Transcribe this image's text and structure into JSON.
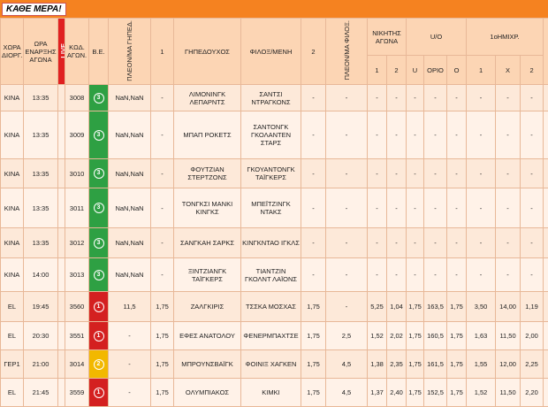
{
  "header": {
    "banner": "ΚΑΘΕ ΜΕΡΑ!"
  },
  "table": {
    "columns": [
      {
        "label": "ΧΩΡΑ ΔΙΟΡΓ."
      },
      {
        "label": "ΩΡΑ ΕΝΑΡΞΗΣ ΑΓΩΝΑ"
      },
      {
        "label": "LIVE"
      },
      {
        "label": "ΚΩΔ. ΑΓΩΝ."
      },
      {
        "label": "Β.Ε."
      },
      {
        "label": "ΠΛΕΟΝ/ΜΑ ΓΗΠΕΔ."
      },
      {
        "label": "1"
      },
      {
        "label": "ΓΗΠΕΔΟΥΧΟΣ"
      },
      {
        "label": "ΦΙΛΟΞ/ΜΕΝΗ"
      },
      {
        "label": "2"
      },
      {
        "label": "ΠΛΕΟΝ/ΜΑ ΦΙΛΟΞ."
      },
      {
        "label": "ΝΙΚΗΤΗΣ ΑΓΩΝΑ",
        "sub": [
          "1",
          "2"
        ]
      },
      {
        "label": "U/O",
        "sub": [
          "U",
          "ΟΡΙΟ",
          "Ο"
        ]
      },
      {
        "label": "1οΗΜΙΧΡ.",
        "sub": [
          "1",
          "Χ",
          "2"
        ]
      }
    ],
    "rows": [
      [
        "ΚΙΝΑ",
        "13:35",
        "3008",
        "3",
        "NaN,NaN",
        "-",
        "ΛΙΜΟΝΙΝΓΚ ΛΕΠΑΡΝΤΣ",
        "ΣΑΝΤΣΙ ΝΤΡΑΓΚΟΝΣ",
        "-",
        "-",
        "-",
        "-",
        "-",
        "-",
        "-",
        "-",
        "-",
        "-"
      ],
      [
        "ΚΙΝΑ",
        "13:35",
        "3009",
        "3",
        "NaN,NaN",
        "-",
        "ΜΠΑΠ ΡΟΚΕΤΣ",
        "ΣΑΝΤΟΝΓΚ ΓΚΟΛΑΝΤΕΝ ΣΤΑΡΣ",
        "-",
        "-",
        "-",
        "-",
        "-",
        "-",
        "-",
        "-",
        "-",
        "-"
      ],
      [
        "ΚΙΝΑ",
        "13:35",
        "3010",
        "3",
        "NaN,NaN",
        "-",
        "ΦΟΥΤΖΙΑΝ ΣΤΕΡΤΖΟΝΣ",
        "ΓΚΟΥΑΝΤΟΝΓΚ ΤΑΪΓΚΕΡΣ",
        "-",
        "-",
        "-",
        "-",
        "-",
        "-",
        "-",
        "-",
        "-",
        "-"
      ],
      [
        "ΚΙΝΑ",
        "13:35",
        "3011",
        "3",
        "NaN,NaN",
        "-",
        "ΤΟΝΓΚΣΙ ΜΑΝΚΙ ΚΙΝΓΚΣ",
        "ΜΠΕΪΤΖΙΝΓΚ ΝΤΑΚΣ",
        "-",
        "-",
        "-",
        "-",
        "-",
        "-",
        "-",
        "-",
        "-",
        "-"
      ],
      [
        "ΚΙΝΑ",
        "13:35",
        "3012",
        "3",
        "NaN,NaN",
        "-",
        "ΣΑΝΓΚΑΗ ΣΑΡΚΣ",
        "ΚΙΝΓΚΝΤΑΟ ΙΓΚΛΣ",
        "-",
        "-",
        "-",
        "-",
        "-",
        "-",
        "-",
        "-",
        "-",
        "-"
      ],
      [
        "ΚΙΝΑ",
        "14:00",
        "3013",
        "3",
        "NaN,NaN",
        "-",
        "ΞΙΝΤΖΙΑΝΓΚ ΤΑΪΓΚΕΡΣ",
        "ΤΙΑΝΤΖΙΝ ΓΚΟΛΝΤ ΛΑΪΟΝΣ",
        "-",
        "-",
        "-",
        "-",
        "-",
        "-",
        "-",
        "-",
        "-",
        "-"
      ],
      [
        "EL",
        "19:45",
        "3560",
        "1",
        "11,5",
        "1,75",
        "ΖΑΛΓΚΙΡΙΣ",
        "ΤΣΣΚΑ ΜΟΣΧΑΣ",
        "1,75",
        "-",
        "5,25",
        "1,04",
        "1,75",
        "163,5",
        "1,75",
        "3,50",
        "14,00",
        "1,19"
      ],
      [
        "EL",
        "20:30",
        "3551",
        "1",
        "-",
        "1,75",
        "ΕΦΕΣ ΑΝΑΤΟΛΟΥ",
        "ΦΕΝΕΡΜΠΑΧΤΣΕ",
        "1,75",
        "2,5",
        "1,52",
        "2,02",
        "1,75",
        "160,5",
        "1,75",
        "1,63",
        "11,50",
        "2,00"
      ],
      [
        "ΓΕΡ1",
        "21:00",
        "3014",
        "2",
        "-",
        "1,75",
        "ΜΠΡΟΥΝΣΒΑΪΓΚ",
        "ΦΟΙΝΙΞ ΧΑΓΚΕΝ",
        "1,75",
        "4,5",
        "1,38",
        "2,35",
        "1,75",
        "161,5",
        "1,75",
        "1,55",
        "12,00",
        "2,25"
      ],
      [
        "EL",
        "21:45",
        "3559",
        "1",
        "-",
        "1,75",
        "ΟΛΥΜΠΙΑΚΟΣ",
        "ΚΙΜΚΙ",
        "1,75",
        "4,5",
        "1,37",
        "2,40",
        "1,75",
        "152,5",
        "1,75",
        "1,52",
        "11,50",
        "2,20"
      ]
    ]
  }
}
